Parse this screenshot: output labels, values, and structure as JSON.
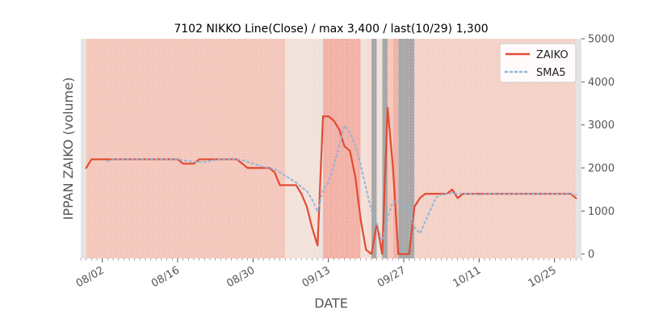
{
  "chart_data": {
    "type": "line",
    "title": "7102 NIKKO Line(Close) / max 3,400 / last(10/29) 1,300",
    "xlabel": "DATE",
    "ylabel": "IPPAN ZAIKO (volume)",
    "ylim": [
      -100,
      5000
    ],
    "yticks": [
      0,
      1000,
      2000,
      3000,
      4000,
      5000
    ],
    "xlim": [
      "2021-07-29",
      "2021-10-30"
    ],
    "xticks": [
      {
        "date": "2021-08-02",
        "label": "08/02"
      },
      {
        "date": "2021-08-16",
        "label": "08/16"
      },
      {
        "date": "2021-08-30",
        "label": "08/30"
      },
      {
        "date": "2021-09-13",
        "label": "09/13"
      },
      {
        "date": "2021-09-27",
        "label": "09/27"
      },
      {
        "date": "2021-10-11",
        "label": "10/11"
      },
      {
        "date": "2021-10-25",
        "label": "10/25"
      }
    ],
    "legend_position": "top-right",
    "grid": true,
    "background_bands": [
      {
        "start": "2021-07-29",
        "end": "2021-07-30",
        "color": "#e3e3e3"
      },
      {
        "start": "2021-07-30",
        "end": "2021-09-05",
        "color": "#f4c8bc"
      },
      {
        "start": "2021-09-05",
        "end": "2021-09-11",
        "color": "#f3e2da"
      },
      {
        "start": "2021-09-11",
        "end": "2021-09-12",
        "color": "#ece2dc"
      },
      {
        "start": "2021-09-12",
        "end": "2021-09-19",
        "color": "#f3b2a8"
      },
      {
        "start": "2021-09-19",
        "end": "2021-09-20",
        "color": "#f3e2da"
      },
      {
        "start": "2021-09-20",
        "end": "2021-09-21",
        "color": "#f6dcd2"
      },
      {
        "start": "2021-09-21",
        "end": "2021-09-22",
        "color": "#a8a8a8"
      },
      {
        "start": "2021-09-22",
        "end": "2021-09-23",
        "color": "#f3e2da"
      },
      {
        "start": "2021-09-23",
        "end": "2021-09-24",
        "color": "#a8a8a8"
      },
      {
        "start": "2021-09-24",
        "end": "2021-09-25",
        "color": "#f4c8bc"
      },
      {
        "start": "2021-09-25",
        "end": "2021-09-26",
        "color": "#f3b2a8"
      },
      {
        "start": "2021-09-26",
        "end": "2021-09-29",
        "color": "#a8a8a8"
      },
      {
        "start": "2021-09-29",
        "end": "2021-10-29",
        "color": "#f4d2c8"
      },
      {
        "start": "2021-10-29",
        "end": "2021-10-30",
        "color": "#e3e3e3"
      }
    ],
    "series": [
      {
        "name": "ZAIKO",
        "color": "#e24a33",
        "style": "solid",
        "points": [
          [
            "2021-07-30",
            2000
          ],
          [
            "2021-07-31",
            2200
          ],
          [
            "2021-08-01",
            2200
          ],
          [
            "2021-08-02",
            2200
          ],
          [
            "2021-08-03",
            2200
          ],
          [
            "2021-08-04",
            2200
          ],
          [
            "2021-08-05",
            2200
          ],
          [
            "2021-08-06",
            2200
          ],
          [
            "2021-08-07",
            2200
          ],
          [
            "2021-08-08",
            2200
          ],
          [
            "2021-08-09",
            2200
          ],
          [
            "2021-08-10",
            2200
          ],
          [
            "2021-08-11",
            2200
          ],
          [
            "2021-08-12",
            2200
          ],
          [
            "2021-08-13",
            2200
          ],
          [
            "2021-08-14",
            2200
          ],
          [
            "2021-08-15",
            2200
          ],
          [
            "2021-08-16",
            2200
          ],
          [
            "2021-08-17",
            2100
          ],
          [
            "2021-08-18",
            2100
          ],
          [
            "2021-08-19",
            2100
          ],
          [
            "2021-08-20",
            2200
          ],
          [
            "2021-08-21",
            2200
          ],
          [
            "2021-08-22",
            2200
          ],
          [
            "2021-08-23",
            2200
          ],
          [
            "2021-08-24",
            2200
          ],
          [
            "2021-08-25",
            2200
          ],
          [
            "2021-08-26",
            2200
          ],
          [
            "2021-08-27",
            2200
          ],
          [
            "2021-08-28",
            2100
          ],
          [
            "2021-08-29",
            2000
          ],
          [
            "2021-08-30",
            2000
          ],
          [
            "2021-08-31",
            2000
          ],
          [
            "2021-09-01",
            2000
          ],
          [
            "2021-09-02",
            2000
          ],
          [
            "2021-09-03",
            1900
          ],
          [
            "2021-09-04",
            1600
          ],
          [
            "2021-09-05",
            1600
          ],
          [
            "2021-09-06",
            1600
          ],
          [
            "2021-09-07",
            1600
          ],
          [
            "2021-09-08",
            1400
          ],
          [
            "2021-09-09",
            1100
          ],
          [
            "2021-09-10",
            600
          ],
          [
            "2021-09-11",
            200
          ],
          [
            "2021-09-12",
            3200
          ],
          [
            "2021-09-13",
            3200
          ],
          [
            "2021-09-14",
            3100
          ],
          [
            "2021-09-15",
            2900
          ],
          [
            "2021-09-16",
            2500
          ],
          [
            "2021-09-17",
            2400
          ],
          [
            "2021-09-18",
            1800
          ],
          [
            "2021-09-19",
            800
          ],
          [
            "2021-09-20",
            100
          ],
          [
            "2021-09-21",
            0
          ],
          [
            "2021-09-22",
            700
          ],
          [
            "2021-09-23",
            0
          ],
          [
            "2021-09-24",
            3400
          ],
          [
            "2021-09-25",
            2000
          ],
          [
            "2021-09-26",
            0
          ],
          [
            "2021-09-27",
            0
          ],
          [
            "2021-09-28",
            0
          ],
          [
            "2021-09-29",
            1100
          ],
          [
            "2021-09-30",
            1300
          ],
          [
            "2021-10-01",
            1400
          ],
          [
            "2021-10-02",
            1400
          ],
          [
            "2021-10-03",
            1400
          ],
          [
            "2021-10-04",
            1400
          ],
          [
            "2021-10-05",
            1400
          ],
          [
            "2021-10-06",
            1500
          ],
          [
            "2021-10-07",
            1300
          ],
          [
            "2021-10-08",
            1400
          ],
          [
            "2021-10-09",
            1400
          ],
          [
            "2021-10-10",
            1400
          ],
          [
            "2021-10-11",
            1400
          ],
          [
            "2021-10-12",
            1400
          ],
          [
            "2021-10-13",
            1400
          ],
          [
            "2021-10-14",
            1400
          ],
          [
            "2021-10-15",
            1400
          ],
          [
            "2021-10-16",
            1400
          ],
          [
            "2021-10-17",
            1400
          ],
          [
            "2021-10-18",
            1400
          ],
          [
            "2021-10-19",
            1400
          ],
          [
            "2021-10-20",
            1400
          ],
          [
            "2021-10-21",
            1400
          ],
          [
            "2021-10-22",
            1400
          ],
          [
            "2021-10-23",
            1400
          ],
          [
            "2021-10-24",
            1400
          ],
          [
            "2021-10-25",
            1400
          ],
          [
            "2021-10-26",
            1400
          ],
          [
            "2021-10-27",
            1400
          ],
          [
            "2021-10-28",
            1400
          ],
          [
            "2021-10-29",
            1300
          ]
        ]
      },
      {
        "name": "SMA5",
        "color": "#8eb4d8",
        "style": "dotted",
        "points": [
          [
            "2021-08-03",
            2160
          ],
          [
            "2021-08-04",
            2200
          ],
          [
            "2021-08-05",
            2200
          ],
          [
            "2021-08-06",
            2200
          ],
          [
            "2021-08-07",
            2200
          ],
          [
            "2021-08-08",
            2200
          ],
          [
            "2021-08-09",
            2200
          ],
          [
            "2021-08-10",
            2200
          ],
          [
            "2021-08-11",
            2200
          ],
          [
            "2021-08-12",
            2200
          ],
          [
            "2021-08-13",
            2200
          ],
          [
            "2021-08-14",
            2200
          ],
          [
            "2021-08-15",
            2200
          ],
          [
            "2021-08-16",
            2200
          ],
          [
            "2021-08-17",
            2180
          ],
          [
            "2021-08-18",
            2160
          ],
          [
            "2021-08-19",
            2140
          ],
          [
            "2021-08-20",
            2140
          ],
          [
            "2021-08-21",
            2140
          ],
          [
            "2021-08-22",
            2160
          ],
          [
            "2021-08-23",
            2180
          ],
          [
            "2021-08-24",
            2200
          ],
          [
            "2021-08-25",
            2200
          ],
          [
            "2021-08-26",
            2200
          ],
          [
            "2021-08-27",
            2200
          ],
          [
            "2021-08-28",
            2180
          ],
          [
            "2021-08-29",
            2140
          ],
          [
            "2021-08-30",
            2100
          ],
          [
            "2021-08-31",
            2060
          ],
          [
            "2021-09-01",
            2020
          ],
          [
            "2021-09-02",
            2000
          ],
          [
            "2021-09-03",
            1980
          ],
          [
            "2021-09-04",
            1900
          ],
          [
            "2021-09-05",
            1820
          ],
          [
            "2021-09-06",
            1740
          ],
          [
            "2021-09-07",
            1660
          ],
          [
            "2021-09-08",
            1560
          ],
          [
            "2021-09-09",
            1460
          ],
          [
            "2021-09-10",
            1260
          ],
          [
            "2021-09-11",
            980
          ],
          [
            "2021-09-12",
            1500
          ],
          [
            "2021-09-13",
            1660
          ],
          [
            "2021-09-14",
            2060
          ],
          [
            "2021-09-15",
            2520
          ],
          [
            "2021-09-16",
            2980
          ],
          [
            "2021-09-17",
            2820
          ],
          [
            "2021-09-18",
            2540
          ],
          [
            "2021-09-19",
            2080
          ],
          [
            "2021-09-20",
            1520
          ],
          [
            "2021-09-21",
            1020
          ],
          [
            "2021-09-22",
            680
          ],
          [
            "2021-09-23",
            320
          ],
          [
            "2021-09-24",
            840
          ],
          [
            "2021-09-25",
            1220
          ],
          [
            "2021-09-26",
            1220
          ],
          [
            "2021-09-27",
            1080
          ],
          [
            "2021-09-28",
            1080
          ],
          [
            "2021-09-29",
            620
          ],
          [
            "2021-09-30",
            480
          ],
          [
            "2021-10-01",
            760
          ],
          [
            "2021-10-02",
            1040
          ],
          [
            "2021-10-03",
            1320
          ],
          [
            "2021-10-04",
            1380
          ],
          [
            "2021-10-05",
            1400
          ],
          [
            "2021-10-06",
            1420
          ],
          [
            "2021-10-07",
            1400
          ],
          [
            "2021-10-08",
            1400
          ],
          [
            "2021-10-09",
            1400
          ],
          [
            "2021-10-10",
            1400
          ],
          [
            "2021-10-11",
            1380
          ],
          [
            "2021-10-12",
            1400
          ],
          [
            "2021-10-13",
            1400
          ],
          [
            "2021-10-14",
            1400
          ],
          [
            "2021-10-15",
            1400
          ],
          [
            "2021-10-16",
            1400
          ],
          [
            "2021-10-17",
            1400
          ],
          [
            "2021-10-18",
            1400
          ],
          [
            "2021-10-19",
            1400
          ],
          [
            "2021-10-20",
            1400
          ],
          [
            "2021-10-21",
            1400
          ],
          [
            "2021-10-22",
            1400
          ],
          [
            "2021-10-23",
            1400
          ],
          [
            "2021-10-24",
            1400
          ],
          [
            "2021-10-25",
            1400
          ],
          [
            "2021-10-26",
            1400
          ],
          [
            "2021-10-27",
            1400
          ],
          [
            "2021-10-28",
            1400
          ],
          [
            "2021-10-29",
            1380
          ]
        ]
      }
    ]
  }
}
